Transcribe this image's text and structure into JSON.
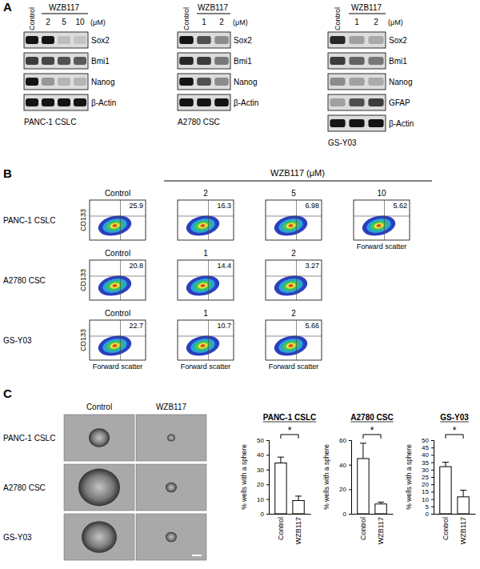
{
  "panel_labels": [
    "A",
    "B",
    "C"
  ],
  "blots": [
    {
      "cell_line": "PANC-1 CSLC",
      "control": "Control",
      "treatment": "WZB117",
      "doses": [
        2,
        5,
        10
      ],
      "unit": "(μM)",
      "proteins": [
        {
          "name": "Sox2",
          "intensity": [
            1,
            1,
            0.15,
            0.12
          ]
        },
        {
          "name": "Bmi1",
          "intensity": [
            0.8,
            0.75,
            0.7,
            0.65
          ]
        },
        {
          "name": "Nanog",
          "intensity": [
            1,
            0.35,
            0.2,
            0.2
          ]
        },
        {
          "name": "β-Actin",
          "intensity": [
            1,
            1,
            1,
            1
          ]
        }
      ]
    },
    {
      "cell_line": "A2780 CSC",
      "control": "Control",
      "treatment": "WZB117",
      "doses": [
        1,
        2
      ],
      "unit": "(μM)",
      "proteins": [
        {
          "name": "Sox2",
          "intensity": [
            1,
            0.7,
            0.4
          ]
        },
        {
          "name": "Bmi1",
          "intensity": [
            0.9,
            0.8,
            0.5
          ]
        },
        {
          "name": "Nanog",
          "intensity": [
            1,
            0.7,
            0.4
          ]
        },
        {
          "name": "β-Actin",
          "intensity": [
            1,
            1,
            1
          ]
        }
      ]
    },
    {
      "cell_line": "GS-Y03",
      "control": "Control",
      "treatment": "WZB117",
      "doses": [
        1,
        2
      ],
      "unit": "(μM)",
      "proteins": [
        {
          "name": "Sox2",
          "intensity": [
            0.9,
            0.3,
            0.25
          ]
        },
        {
          "name": "Bmi1",
          "intensity": [
            0.8,
            0.6,
            0.5
          ]
        },
        {
          "name": "Nanog",
          "intensity": [
            0.4,
            0.3,
            0.25
          ]
        },
        {
          "name": "GFAP",
          "intensity": [
            0.3,
            0.7,
            0.8
          ]
        },
        {
          "name": "β-Actin",
          "intensity": [
            1,
            1,
            1
          ]
        }
      ]
    }
  ],
  "flow": {
    "header": "WZB117 (μM)",
    "x_label": "Forward scatter",
    "y_label": "CD133",
    "rows": [
      {
        "label": "PANC-1 CSLC",
        "column_labels": [
          "Control",
          2,
          5,
          10
        ],
        "percent": [
          25.9,
          16.3,
          6.98,
          5.62
        ]
      },
      {
        "label": "A2780 CSC",
        "column_labels": [
          "Control",
          1,
          2
        ],
        "percent": [
          20.8,
          14.4,
          3.27
        ]
      },
      {
        "label": "GS-Y03",
        "column_labels": [
          "Control",
          1,
          2
        ],
        "percent": [
          22.7,
          10.7,
          5.66
        ]
      }
    ]
  },
  "sphere_images": {
    "columns": [
      "Control",
      "WZB117"
    ],
    "rows": [
      "PANC-1 CSLC",
      "A2780 CSC",
      "GS-Y03"
    ]
  },
  "chart_data": [
    {
      "type": "bar",
      "title": "PANC-1 CSLC",
      "categories": [
        "Control",
        "WZB117"
      ],
      "values": [
        34.5,
        9
      ],
      "errors": [
        4,
        3
      ],
      "color": "#ffffff",
      "ylim": [
        0,
        50
      ],
      "yticks": [
        0,
        10,
        20,
        30,
        40,
        50
      ],
      "y_label": "% wells with a sphere",
      "annotation": "*"
    },
    {
      "type": "bar",
      "title": "A2780 CSC",
      "categories": [
        "Control",
        "WZB117"
      ],
      "values": [
        45,
        8
      ],
      "errors": [
        12.5,
        1.5
      ],
      "color": "#ffffff",
      "ylim": [
        0,
        60
      ],
      "yticks": [
        0,
        20,
        40,
        60
      ],
      "y_label": "% wells with a sphere",
      "annotation": "*"
    },
    {
      "type": "bar",
      "title": "GS-Y03",
      "categories": [
        "Control",
        "WZB117"
      ],
      "values": [
        32,
        11.5
      ],
      "errors": [
        3,
        4.5
      ],
      "color": "#ffffff",
      "ylim": [
        0,
        50
      ],
      "yticks": [
        0,
        5,
        10,
        15,
        20,
        25,
        30,
        35,
        40,
        45,
        50
      ],
      "y_label": "% wells with a sphere",
      "annotation": "*"
    }
  ]
}
